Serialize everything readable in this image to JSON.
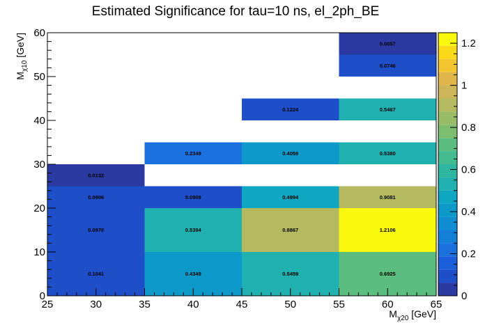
{
  "chart_data": {
    "type": "heatmap",
    "title": "Estimated Significance for tau=10 ns, el_2ph_BE",
    "xlabel": {
      "main": "M",
      "sub": "χ20",
      "unit": " [GeV]"
    },
    "ylabel": {
      "main": "M",
      "sub": "χ10",
      "unit": " [GeV]"
    },
    "xlim": [
      25,
      65
    ],
    "ylim": [
      0,
      60
    ],
    "x_ticks": [
      "25",
      "30",
      "35",
      "40",
      "45",
      "50",
      "55",
      "60",
      "65"
    ],
    "y_ticks": [
      "0",
      "10",
      "20",
      "30",
      "40",
      "50",
      "60"
    ],
    "z_range": [
      0,
      1.25
    ],
    "z_ticks": [
      "0",
      "0.2",
      "0.4",
      "0.6",
      "0.8",
      "1",
      "1.2"
    ],
    "cells": [
      {
        "x0": 25,
        "x1": 35,
        "y0": 0,
        "y1": 10,
        "value": 0.1041,
        "label": "0.1041"
      },
      {
        "x0": 25,
        "x1": 35,
        "y0": 10,
        "y1": 20,
        "value": 0.097,
        "label": "0.0970"
      },
      {
        "x0": 25,
        "x1": 35,
        "y0": 20,
        "y1": 25,
        "value": 0.0906,
        "label": "0.0906"
      },
      {
        "x0": 25,
        "x1": 35,
        "y0": 25,
        "y1": 30,
        "value": 0.0132,
        "label": "0.0132"
      },
      {
        "x0": 35,
        "x1": 45,
        "y0": 0,
        "y1": 10,
        "value": 0.4349,
        "label": "0.4349"
      },
      {
        "x0": 35,
        "x1": 45,
        "y0": 10,
        "y1": 20,
        "value": 0.5394,
        "label": "0.5394"
      },
      {
        "x0": 35,
        "x1": 45,
        "y0": 20,
        "y1": 25,
        "value": 0.0909,
        "label": "0.0909"
      },
      {
        "x0": 35,
        "x1": 45,
        "y0": 30,
        "y1": 35,
        "value": 0.2349,
        "label": "0.2349"
      },
      {
        "x0": 45,
        "x1": 55,
        "y0": 0,
        "y1": 10,
        "value": 0.5459,
        "label": "0.5459"
      },
      {
        "x0": 45,
        "x1": 55,
        "y0": 10,
        "y1": 20,
        "value": 0.8867,
        "label": "0.8867"
      },
      {
        "x0": 45,
        "x1": 55,
        "y0": 20,
        "y1": 25,
        "value": 0.4994,
        "label": "0.4994"
      },
      {
        "x0": 45,
        "x1": 55,
        "y0": 30,
        "y1": 35,
        "value": 0.4059,
        "label": "0.4059"
      },
      {
        "x0": 45,
        "x1": 55,
        "y0": 40,
        "y1": 45,
        "value": 0.1224,
        "label": "0.1224"
      },
      {
        "x0": 55,
        "x1": 65,
        "y0": 0,
        "y1": 10,
        "value": 0.6925,
        "label": "0.6925"
      },
      {
        "x0": 55,
        "x1": 65,
        "y0": 10,
        "y1": 20,
        "value": 1.2106,
        "label": "1.2106"
      },
      {
        "x0": 55,
        "x1": 65,
        "y0": 20,
        "y1": 25,
        "value": 0.9081,
        "label": "0.9081"
      },
      {
        "x0": 55,
        "x1": 65,
        "y0": 30,
        "y1": 35,
        "value": 0.538,
        "label": "0.5380"
      },
      {
        "x0": 55,
        "x1": 65,
        "y0": 40,
        "y1": 45,
        "value": 0.5467,
        "label": "0.5467"
      },
      {
        "x0": 55,
        "x1": 65,
        "y0": 50,
        "y1": 55,
        "value": 0.0746,
        "label": "0.0746"
      },
      {
        "x0": 55,
        "x1": 65,
        "y0": 55,
        "y1": 60,
        "value": 0.0057,
        "label": "0.0057"
      }
    ],
    "palette": [
      "#2a3aa1",
      "#1e4ec8",
      "#1a5fd9",
      "#1a70dc",
      "#137fd7",
      "#118dd2",
      "#0c99c9",
      "#0ea6c0",
      "#21b0b0",
      "#2fb6a0",
      "#44ba8f",
      "#5cbd80",
      "#7bbe70",
      "#99bd66",
      "#b5ba60",
      "#cdb65a",
      "#e0b64a",
      "#f2c530",
      "#fcd918",
      "#f9f90e"
    ]
  }
}
